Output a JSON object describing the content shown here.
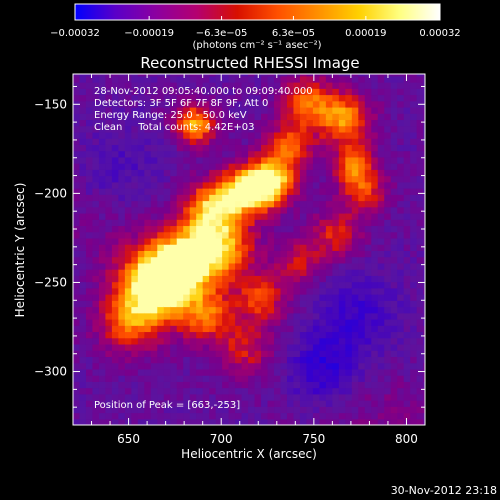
{
  "chart_data": {
    "type": "heatmap",
    "title": "Reconstructed RHESSI Image",
    "xlabel": "Heliocentric X (arcsec)",
    "ylabel": "Heliocentric Y (arcsec)",
    "xlim": [
      620,
      810
    ],
    "ylim": [
      -330,
      -133
    ],
    "x_ticks": [
      650,
      700,
      750,
      800
    ],
    "y_ticks": [
      -150,
      -200,
      -250,
      -300
    ],
    "x_tick_labels": [
      "650",
      "700",
      "750",
      "800"
    ],
    "y_tick_labels": [
      "−150",
      "−200",
      "−250",
      "−300"
    ],
    "colorbar": {
      "range": [
        -0.00032,
        0.00032
      ],
      "tick_values": [
        -0.00032,
        -0.00019,
        -6.3e-05,
        6.3e-05,
        0.00019,
        0.00032
      ],
      "tick_labels": [
        "−0.00032",
        "−0.00019",
        "−6.3e−05",
        "6.3e−05",
        "0.00019",
        "0.00032"
      ],
      "units_label": "(photons cm⁻² s⁻¹ asec⁻²)",
      "colors": [
        "#0000ff",
        "#5a00c8",
        "#8c00a0",
        "#b40070",
        "#d81000",
        "#ff5000",
        "#ff9000",
        "#ffd000",
        "#ffff80",
        "#ffffff"
      ]
    },
    "info_lines": [
      "28-Nov-2012 09:05:40.000 to 09:09:40.000",
      "Detectors: 3F 5F 6F 7F 8F 9F, Att 0",
      "Energy Range: 25.0 - 50.0 keV",
      "Clean     Total counts: 4.42E+03"
    ],
    "peak_label": "Position of Peak = [663,-253]",
    "peak": [
      663,
      -253
    ],
    "grid": false,
    "legend": "none"
  },
  "timestamp": "30-Nov-2012 23:18"
}
